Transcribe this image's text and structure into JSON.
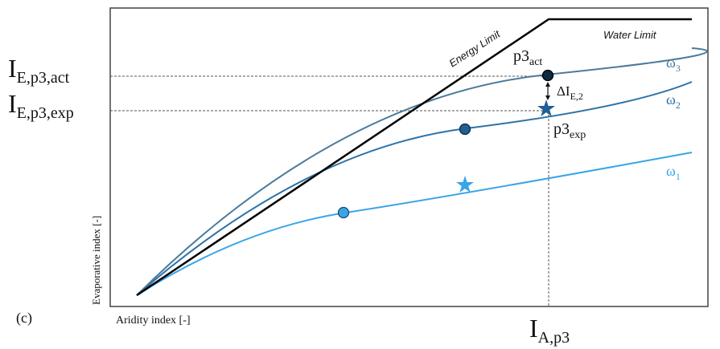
{
  "panel_label": "(c)",
  "axes": {
    "xlabel": "Aridity index [-]",
    "ylabel": "Evaporative index [-]"
  },
  "limits": {
    "energy": "Energy Limit",
    "water": "Water Limit"
  },
  "curves": [
    {
      "label_main": "ω",
      "label_sub": "1",
      "color": "#3aa5e6"
    },
    {
      "label_main": "ω",
      "label_sub": "2",
      "color": "#2c72a8"
    },
    {
      "label_main": "ω",
      "label_sub": "3",
      "color": "#4a7a9c"
    }
  ],
  "guides": {
    "ie_act_main": "I",
    "ie_act_sub": "E,p3,act",
    "ie_exp_main": "I",
    "ie_exp_sub": "E,p3,exp",
    "ia_main": "I",
    "ia_sub": "A,p3"
  },
  "points": {
    "p3_act_main": "p3",
    "p3_act_sub": "act",
    "p3_exp_main": "p3",
    "p3_exp_sub": "exp",
    "delta_main": "ΔI",
    "delta_sub": "E,2"
  },
  "colors": {
    "limit": "#000000",
    "dark_marker": "#0e2a40",
    "mid_marker": "#1f5f96",
    "light_marker": "#3aa5e6"
  }
}
